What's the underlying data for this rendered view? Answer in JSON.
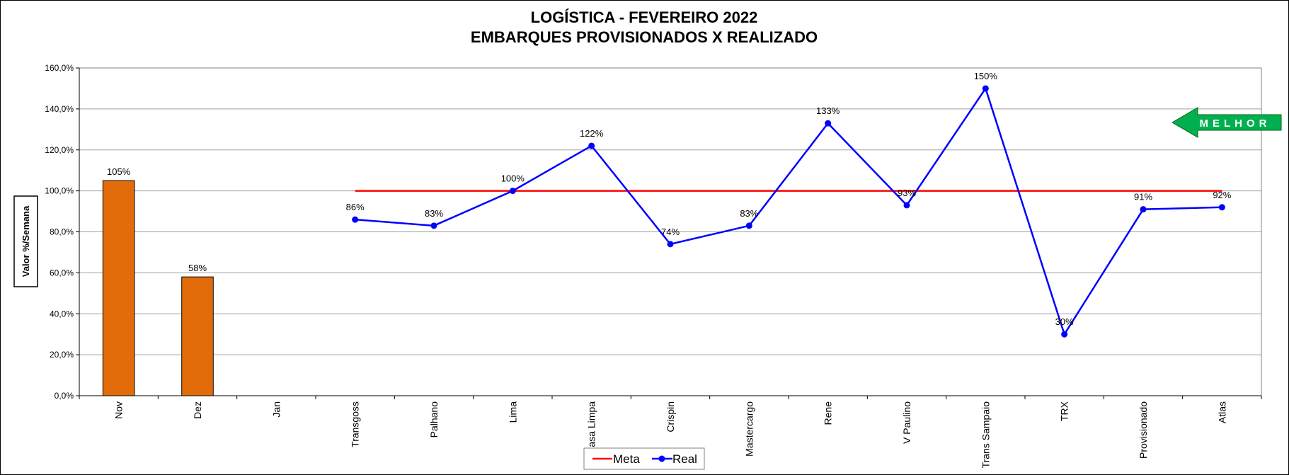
{
  "title_lines": [
    "LOGÍSTICA - FEVEREIRO 2022",
    "EMBARQUES PROVISIONADOS X REALIZADO"
  ],
  "ylabel": "Valor %/Semana",
  "y_ticks": [
    "0,0%",
    "20,0%",
    "40,0%",
    "60,0%",
    "80,0%",
    "100,0%",
    "120,0%",
    "140,0%",
    "160,0%"
  ],
  "arrow_label": "MELHOR",
  "colors": {
    "bar": "#E36C0A",
    "meta": "#FF0000",
    "real": "#0000FF",
    "arrow": "#00B050"
  },
  "chart_data": {
    "type": "bar+line",
    "ylim": [
      0,
      160
    ],
    "grid": true,
    "legend_position": "bottom-center",
    "categories": [
      "Nov",
      "Dez",
      "Jan",
      "Transgoss",
      "Palhano",
      "Lima",
      "asa Limpa",
      "Crispin",
      "Mastercargo",
      "Rene",
      "V Paulino",
      "Trans Sampaio",
      "TRX",
      "Provisionado",
      "Atlas"
    ],
    "bars": {
      "values": [
        105,
        58,
        null,
        null,
        null,
        null,
        null,
        null,
        null,
        null,
        null,
        null,
        null,
        null,
        null
      ],
      "labels": [
        "105%",
        "58%",
        "",
        "",
        "",
        "",
        "",
        "",
        "",
        "",
        "",
        "",
        "",
        "",
        ""
      ]
    },
    "series": [
      {
        "name": "Meta",
        "values": [
          null,
          null,
          null,
          100,
          100,
          100,
          100,
          100,
          100,
          100,
          100,
          100,
          100,
          100,
          100
        ]
      },
      {
        "name": "Real",
        "values": [
          null,
          null,
          null,
          86,
          83,
          100,
          122,
          74,
          83,
          133,
          93,
          150,
          30,
          91,
          92
        ],
        "labels": [
          "",
          "",
          "",
          "86%",
          "83%",
          "100%",
          "122%",
          "74%",
          "83%",
          "133%",
          "93%",
          "150%",
          "30%",
          "91%",
          "92%"
        ]
      }
    ]
  }
}
